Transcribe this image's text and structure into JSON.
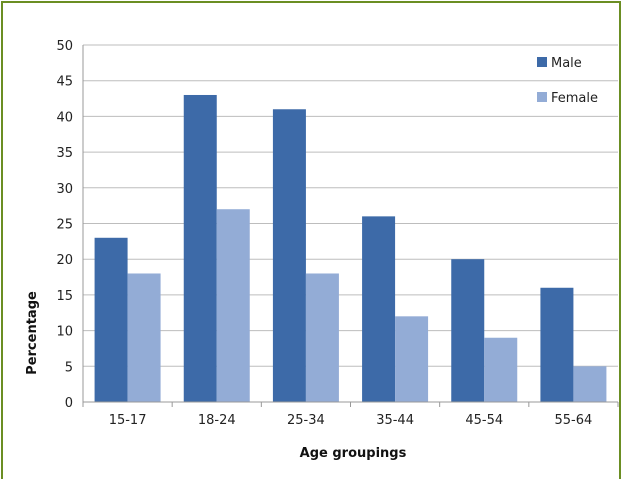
{
  "chart_data": {
    "type": "bar",
    "title": "",
    "xlabel": "Age groupings",
    "ylabel": "Percentage",
    "ylim": [
      0,
      50
    ],
    "ytick_step": 5,
    "grid": true,
    "legend_position": "top-right",
    "categories": [
      "15-17",
      "18-24",
      "25-34",
      "35-44",
      "45-54",
      "55-64"
    ],
    "series": [
      {
        "name": "Male",
        "color": "#3d6aa8",
        "values": [
          23,
          43,
          41,
          26,
          20,
          16
        ]
      },
      {
        "name": "Female",
        "color": "#93acd6",
        "values": [
          18,
          27,
          18,
          12,
          9,
          5
        ]
      }
    ]
  }
}
